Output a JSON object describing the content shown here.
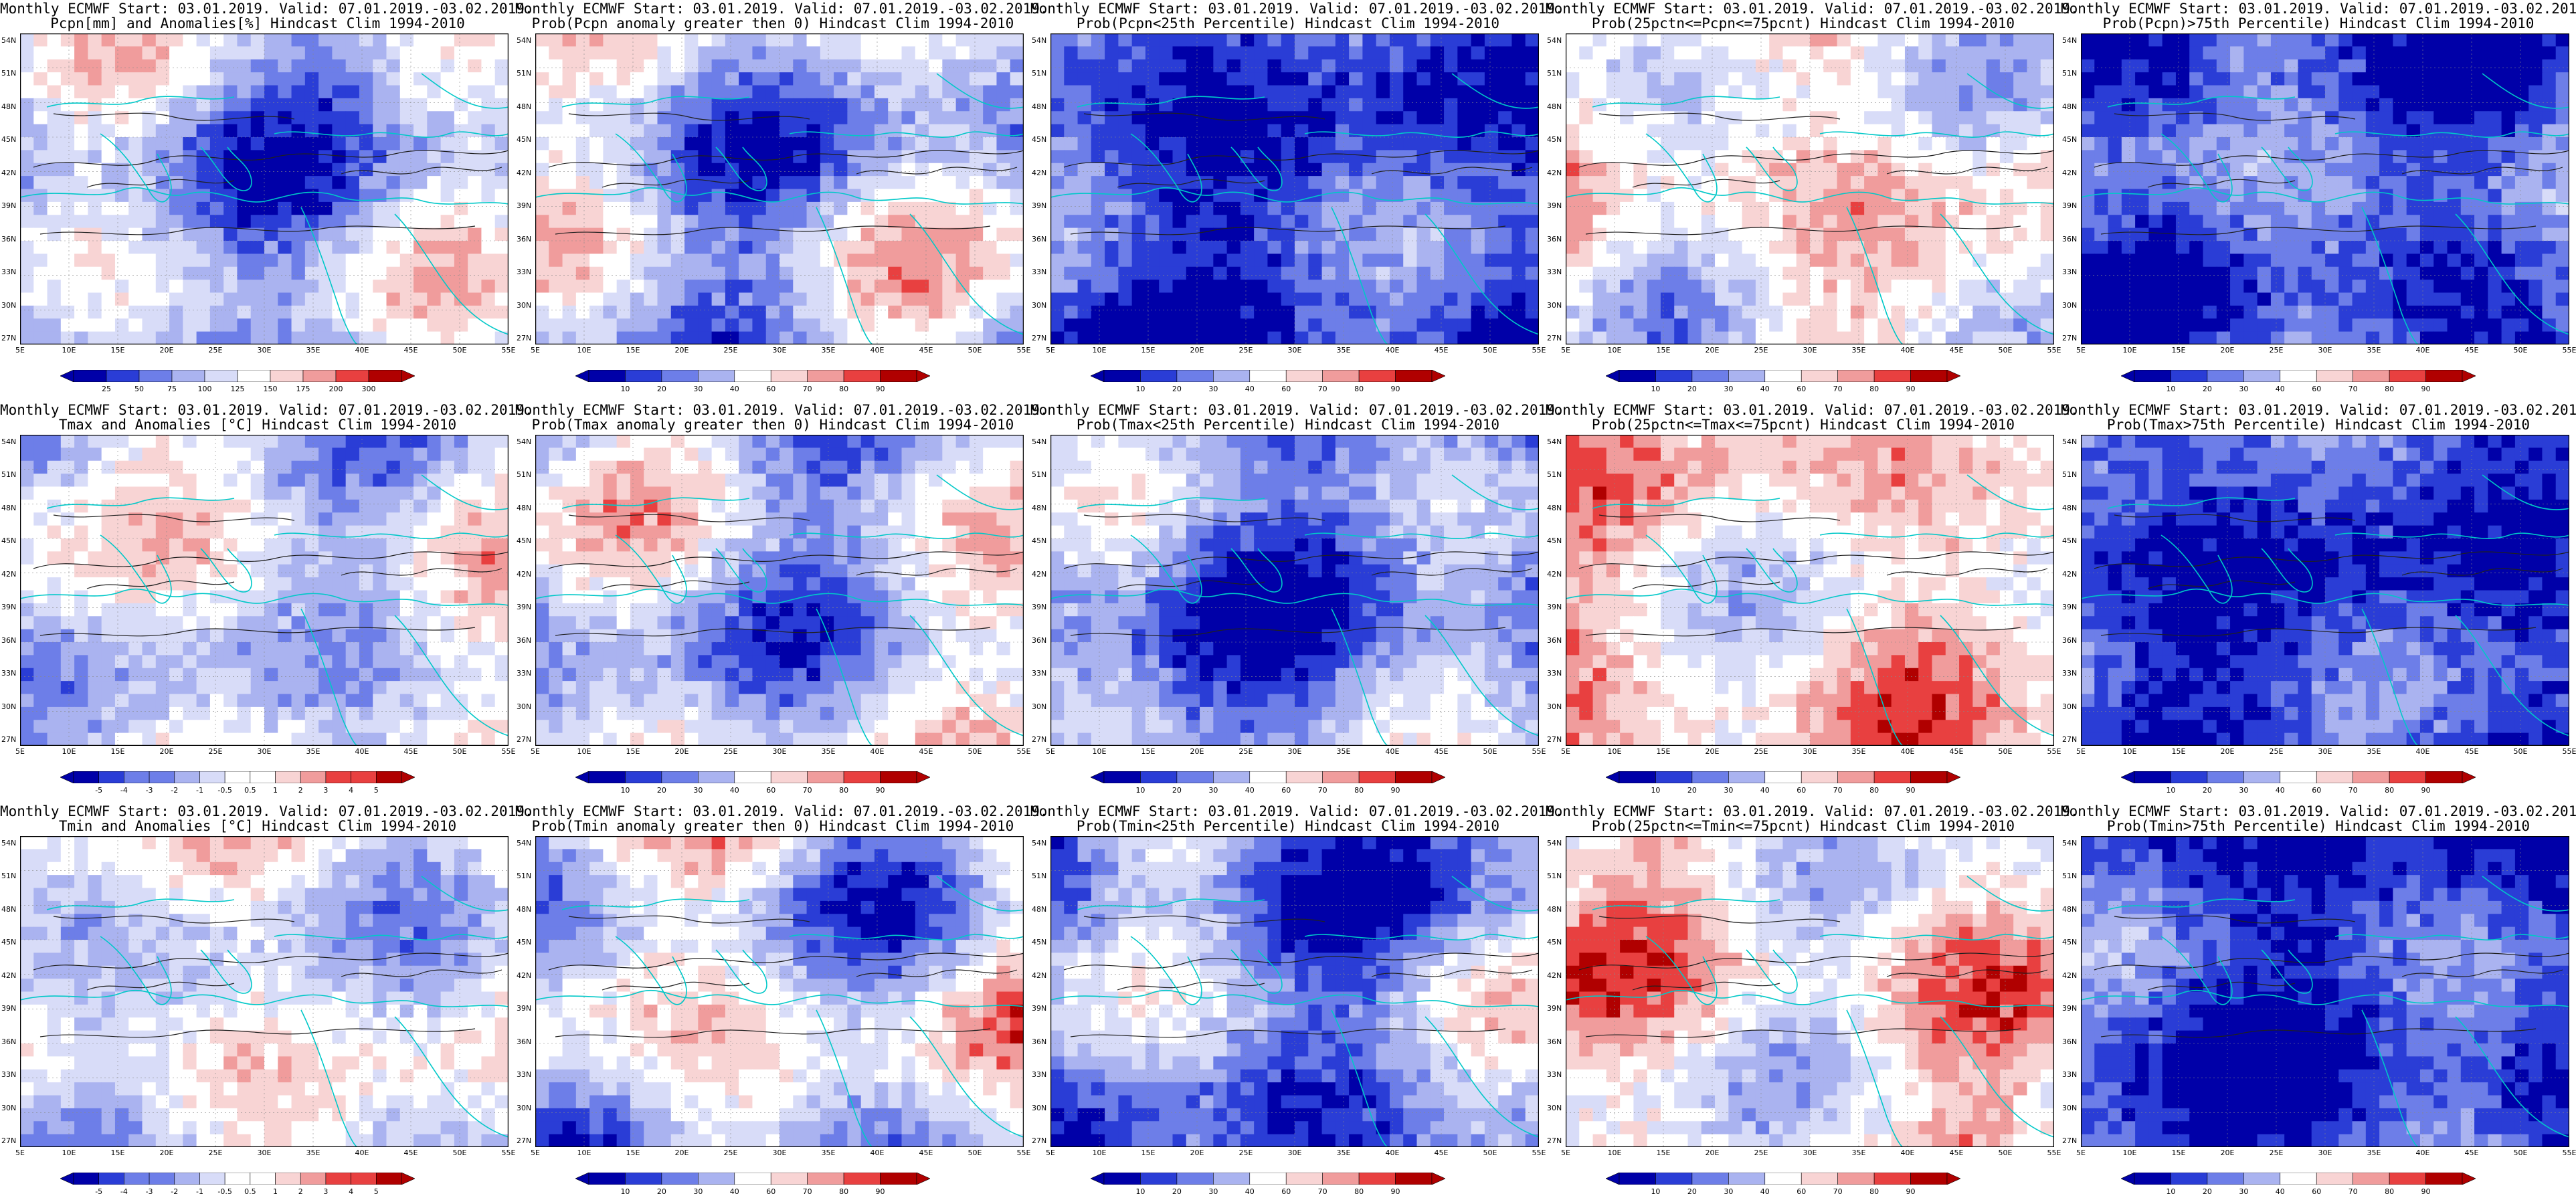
{
  "page_title_line1": "Monthly ECMWF Start: 03.01.2019. Valid: 07.01.2019.-03.02.2019.",
  "colors": {
    "deep_blue": "#0000a8",
    "blue": "#2a3dd6",
    "mid_blue": "#6d7ee8",
    "light_blue": "#aab3f0",
    "pale_blue": "#d8dcf8",
    "white": "#ffffff",
    "pale_red": "#f8d4d4",
    "light_red": "#f09c9c",
    "red": "#e84040",
    "deep_red": "#b00000",
    "coast": "#00c8c8",
    "contour": "#202020"
  },
  "lat_ticks": [
    "54N",
    "51N",
    "48N",
    "45N",
    "42N",
    "39N",
    "36N",
    "33N",
    "30N",
    "27N"
  ],
  "lon_ticks": [
    "5E",
    "10E",
    "15E",
    "20E",
    "25E",
    "30E",
    "35E",
    "40E",
    "45E",
    "50E",
    "55E"
  ],
  "colorbars": {
    "anomaly_pcpn": [
      "25",
      "50",
      "75",
      "100",
      "125",
      "150",
      "175",
      "200",
      "300"
    ],
    "probability": [
      "10",
      "20",
      "30",
      "40",
      "60",
      "70",
      "80",
      "90"
    ],
    "anomaly_temp": [
      "-5",
      "-4",
      "-3",
      "-2",
      "-1",
      "-0.5",
      "0.5",
      "1",
      "2",
      "3",
      "4",
      "5"
    ]
  },
  "panels": [
    {
      "subtitle": "Pcpn[mm] and Anomalies[%] Hindcast Clim 1994-2010",
      "colorbar": "anomaly_pcpn",
      "field": "pcpn_anom"
    },
    {
      "subtitle": "Prob(Pcpn anomaly greater then 0) Hindcast Clim 1994-2010",
      "colorbar": "probability",
      "field": "pcpn_gt0"
    },
    {
      "subtitle": "Prob(Pcpn<25th Percentile) Hindcast Clim 1994-2010",
      "colorbar": "probability",
      "field": "pcpn_lt25"
    },
    {
      "subtitle": "Prob(25pctn<=Pcpn<=75pcnt) Hindcast Clim 1994-2010",
      "colorbar": "probability",
      "field": "pcpn_mid"
    },
    {
      "subtitle": "Prob(Pcpn)>75th Percentile) Hindcast Clim 1994-2010",
      "colorbar": "probability",
      "field": "pcpn_gt75"
    },
    {
      "subtitle": "Tmax and Anomalies [°C] Hindcast Clim 1994-2010",
      "colorbar": "anomaly_temp",
      "field": "tmax_anom"
    },
    {
      "subtitle": "Prob(Tmax anomaly greater then 0) Hindcast Clim 1994-2010",
      "colorbar": "probability",
      "field": "tmax_gt0"
    },
    {
      "subtitle": "Prob(Tmax<25th Percentile) Hindcast Clim 1994-2010",
      "colorbar": "probability",
      "field": "tmax_lt25"
    },
    {
      "subtitle": "Prob(25pctn<=Tmax<=75pcnt) Hindcast Clim 1994-2010",
      "colorbar": "probability",
      "field": "tmax_mid"
    },
    {
      "subtitle": "Prob(Tmax>75th Percentile) Hindcast Clim 1994-2010",
      "colorbar": "probability",
      "field": "tmax_gt75"
    },
    {
      "subtitle": "Tmin and Anomalies [°C] Hindcast Clim 1994-2010",
      "colorbar": "anomaly_temp",
      "field": "tmin_anom"
    },
    {
      "subtitle": "Prob(Tmin anomaly greater then 0) Hindcast Clim 1994-2010",
      "colorbar": "probability",
      "field": "tmin_gt0"
    },
    {
      "subtitle": "Prob(Tmin<25th Percentile) Hindcast Clim 1994-2010",
      "colorbar": "probability",
      "field": "tmin_lt25"
    },
    {
      "subtitle": "Prob(25pctn<=Tmin<=75pcnt) Hindcast Clim 1994-2010",
      "colorbar": "probability",
      "field": "tmin_mid"
    },
    {
      "subtitle": "Prob(Tmin>75th Percentile) Hindcast Clim 1994-2010",
      "colorbar": "probability",
      "field": "tmin_gt75"
    }
  ]
}
